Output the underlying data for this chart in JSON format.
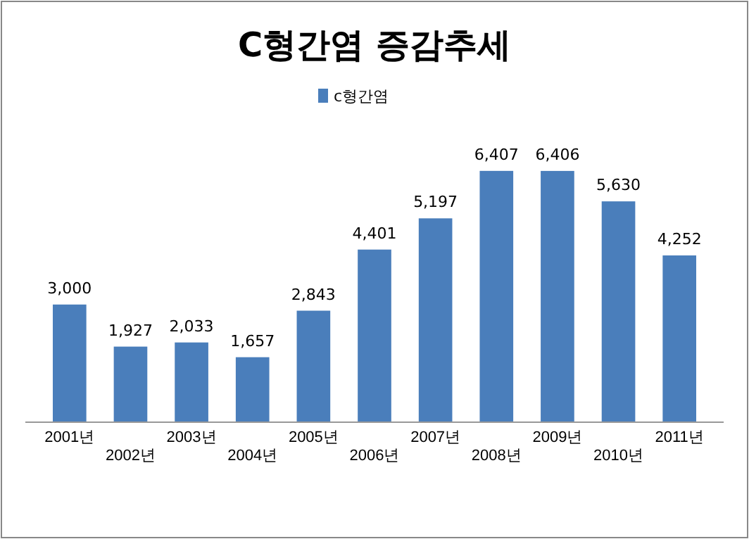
{
  "chart_data": {
    "type": "bar",
    "title": "C형간염 증감추세",
    "categories": [
      "2001년",
      "2002년",
      "2003년",
      "2004년",
      "2005년",
      "2006년",
      "2007년",
      "2008년",
      "2009년",
      "2010년",
      "2011년"
    ],
    "series": [
      {
        "name": "c형간염",
        "color": "#4a7ebb",
        "values": [
          3000,
          1927,
          2033,
          1657,
          2843,
          4401,
          5197,
          6407,
          6406,
          5630,
          4252
        ],
        "value_labels": [
          "3,000",
          "1,927",
          "2,033",
          "1,657",
          "2,843",
          "4,401",
          "5,197",
          "6,407",
          "6,406",
          "5,630",
          "4,252"
        ]
      }
    ],
    "legend": "top",
    "grid": false
  }
}
